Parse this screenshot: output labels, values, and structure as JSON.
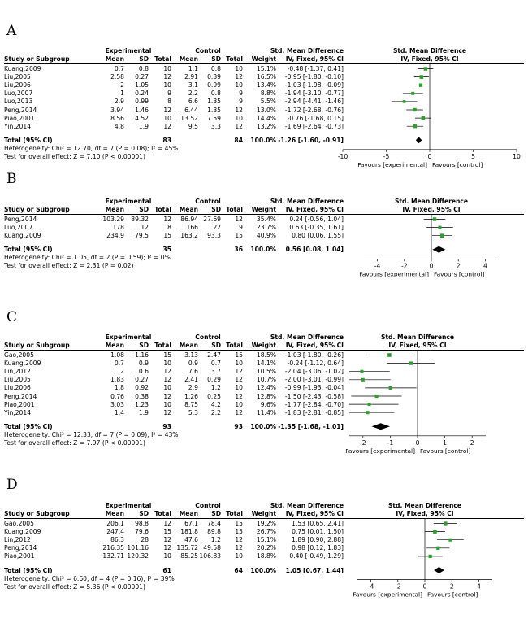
{
  "chart_data": [
    {
      "type": "forest",
      "panel": "A",
      "group_header": {
        "experimental": "Experimental",
        "control": "Control"
      },
      "columns": [
        "Study or Subgroup",
        "Mean",
        "SD",
        "Total",
        "Mean",
        "SD",
        "Total",
        "Weight",
        "IV, Fixed, 95% CI",
        "IV, Fixed, 95% CI"
      ],
      "effect_title": "Std. Mean Difference",
      "studies": [
        {
          "name": "Kuang,2009",
          "e_mean": "0.7",
          "e_sd": "0.8",
          "e_total": "10",
          "c_mean": "1.1",
          "c_sd": "0.8",
          "c_total": "10",
          "weight": "15.1%",
          "ci_text": "-0.48 [-1.37, 0.41]",
          "est": -0.48,
          "lo": -1.37,
          "hi": 0.41
        },
        {
          "name": "Liu,2005",
          "e_mean": "2.58",
          "e_sd": "0.27",
          "e_total": "12",
          "c_mean": "2.91",
          "c_sd": "0.39",
          "c_total": "12",
          "weight": "16.5%",
          "ci_text": "-0.95 [-1.80, -0.10]",
          "est": -0.95,
          "lo": -1.8,
          "hi": -0.1
        },
        {
          "name": "Liu,2006",
          "e_mean": "2",
          "e_sd": "1.05",
          "e_total": "10",
          "c_mean": "3.1",
          "c_sd": "0.99",
          "c_total": "10",
          "weight": "13.4%",
          "ci_text": "-1.03 [-1.98, -0.09]",
          "est": -1.03,
          "lo": -1.98,
          "hi": -0.09
        },
        {
          "name": "Luo,2007",
          "e_mean": "1",
          "e_sd": "0.24",
          "e_total": "9",
          "c_mean": "2.2",
          "c_sd": "0.8",
          "c_total": "9",
          "weight": "8.8%",
          "ci_text": "-1.94 [-3.10, -0.77]",
          "est": -1.94,
          "lo": -3.1,
          "hi": -0.77
        },
        {
          "name": "Luo,2013",
          "e_mean": "2.9",
          "e_sd": "0.99",
          "e_total": "8",
          "c_mean": "6.6",
          "c_sd": "1.35",
          "c_total": "9",
          "weight": "5.5%",
          "ci_text": "-2.94 [-4.41, -1.46]",
          "est": -2.94,
          "lo": -4.41,
          "hi": -1.46
        },
        {
          "name": "Peng,2014",
          "e_mean": "3.94",
          "e_sd": "1.46",
          "e_total": "12",
          "c_mean": "6.44",
          "c_sd": "1.35",
          "c_total": "12",
          "weight": "13.0%",
          "ci_text": "-1.72 [-2.68, -0.76]",
          "est": -1.72,
          "lo": -2.68,
          "hi": -0.76
        },
        {
          "name": "Piao,2001",
          "e_mean": "8.56",
          "e_sd": "4.52",
          "e_total": "10",
          "c_mean": "13.52",
          "c_sd": "7.59",
          "c_total": "10",
          "weight": "14.4%",
          "ci_text": "-0.76 [-1.68, 0.15]",
          "est": -0.76,
          "lo": -1.68,
          "hi": 0.15
        },
        {
          "name": "Yin,2014",
          "e_mean": "4.8",
          "e_sd": "1.9",
          "e_total": "12",
          "c_mean": "9.5",
          "c_sd": "3.3",
          "c_total": "12",
          "weight": "13.2%",
          "ci_text": "-1.69 [-2.64, -0.73]",
          "est": -1.69,
          "lo": -2.64,
          "hi": -0.73
        }
      ],
      "total": {
        "label": "Total (95% CI)",
        "e_total": "83",
        "c_total": "84",
        "weight": "100.0%",
        "ci_text": "-1.26 [-1.60, -0.91]",
        "est": -1.26,
        "lo": -1.6,
        "hi": -0.91
      },
      "heterogeneity": "Heterogeneity: Chi² = 12.70, df = 7 (P = 0.08); I² = 45%",
      "overall_test": "Test for overall effect: Z = 7.10 (P < 0.00001)",
      "xlim": [
        -10,
        10
      ],
      "ticks": [
        -10,
        -5,
        0,
        5,
        10
      ],
      "favours_left": "Favours [experimental]",
      "favours_right": "Favours [control]"
    },
    {
      "type": "forest",
      "panel": "B",
      "group_header": {
        "experimental": "Experimental",
        "control": "Control"
      },
      "columns": [
        "Study or Subgroup",
        "Mean",
        "SD",
        "Total",
        "Mean",
        "SD",
        "Total",
        "Weight",
        "IV, Fixed, 95% CI",
        "IV, Fixed, 95% CI"
      ],
      "effect_title": "Std. Mean Difference",
      "studies": [
        {
          "name": "Peng,2014",
          "e_mean": "103.29",
          "e_sd": "89.32",
          "e_total": "12",
          "c_mean": "86.94",
          "c_sd": "27.69",
          "c_total": "12",
          "weight": "35.4%",
          "ci_text": "0.24 [-0.56, 1.04]",
          "est": 0.24,
          "lo": -0.56,
          "hi": 1.04
        },
        {
          "name": "Luo,2007",
          "e_mean": "178",
          "e_sd": "12",
          "e_total": "8",
          "c_mean": "166",
          "c_sd": "22",
          "c_total": "9",
          "weight": "23.7%",
          "ci_text": "0.63 [-0.35, 1.61]",
          "est": 0.63,
          "lo": -0.35,
          "hi": 1.61
        },
        {
          "name": "Kuang,2009",
          "e_mean": "234.9",
          "e_sd": "79.5",
          "e_total": "15",
          "c_mean": "163.2",
          "c_sd": "93.3",
          "c_total": "15",
          "weight": "40.9%",
          "ci_text": "0.80 [0.06, 1.55]",
          "est": 0.8,
          "lo": 0.06,
          "hi": 1.55
        }
      ],
      "total": {
        "label": "Total (95% CI)",
        "e_total": "35",
        "c_total": "36",
        "weight": "100.0%",
        "ci_text": "0.56 [0.08, 1.04]",
        "est": 0.56,
        "lo": 0.08,
        "hi": 1.04
      },
      "heterogeneity": "Heterogeneity: Chi² = 1.05, df = 2 (P = 0.59); I² = 0%",
      "overall_test": "Test for overall effect: Z = 2.31 (P = 0.02)",
      "xlim": [
        -5,
        5
      ],
      "ticks": [
        -4,
        -2,
        0,
        2,
        4
      ],
      "favours_left": "Favours [experimental]",
      "favours_right": "Favours [control]"
    },
    {
      "type": "forest",
      "panel": "C",
      "group_header": {
        "experimental": "Experimental",
        "control": "Control"
      },
      "columns": [
        "Study or Subgroup",
        "Mean",
        "SD",
        "Total",
        "Mean",
        "SD",
        "Total",
        "Weight",
        "IV, Fixed, 95% CI",
        "IV, Fixed, 95% CI"
      ],
      "effect_title": "Std. Mean Difference",
      "studies": [
        {
          "name": "Gao,2005",
          "e_mean": "1.08",
          "e_sd": "1.16",
          "e_total": "15",
          "c_mean": "3.13",
          "c_sd": "2.47",
          "c_total": "15",
          "weight": "18.5%",
          "ci_text": "-1.03 [-1.80, -0.26]",
          "est": -1.03,
          "lo": -1.8,
          "hi": -0.26
        },
        {
          "name": "Kuang,2009",
          "e_mean": "0.7",
          "e_sd": "0.9",
          "e_total": "10",
          "c_mean": "0.9",
          "c_sd": "0.7",
          "c_total": "10",
          "weight": "14.1%",
          "ci_text": "-0.24 [-1.12, 0.64]",
          "est": -0.24,
          "lo": -1.12,
          "hi": 0.64
        },
        {
          "name": "Lin,2012",
          "e_mean": "2",
          "e_sd": "0.6",
          "e_total": "12",
          "c_mean": "7.6",
          "c_sd": "3.7",
          "c_total": "12",
          "weight": "10.5%",
          "ci_text": "-2.04 [-3.06, -1.02]",
          "est": -2.04,
          "lo": -3.06,
          "hi": -1.02
        },
        {
          "name": "Liu,2005",
          "e_mean": "1.83",
          "e_sd": "0.27",
          "e_total": "12",
          "c_mean": "2.41",
          "c_sd": "0.29",
          "c_total": "12",
          "weight": "10.7%",
          "ci_text": "-2.00 [-3.01, -0.99]",
          "est": -2.0,
          "lo": -3.01,
          "hi": -0.99
        },
        {
          "name": "Liu,2006",
          "e_mean": "1.8",
          "e_sd": "0.92",
          "e_total": "10",
          "c_mean": "2.9",
          "c_sd": "1.2",
          "c_total": "10",
          "weight": "12.4%",
          "ci_text": "-0.99 [-1.93, -0.04]",
          "est": -0.99,
          "lo": -1.93,
          "hi": -0.04
        },
        {
          "name": "Peng,2014",
          "e_mean": "0.76",
          "e_sd": "0.38",
          "e_total": "12",
          "c_mean": "1.26",
          "c_sd": "0.25",
          "c_total": "12",
          "weight": "12.8%",
          "ci_text": "-1.50 [-2.43, -0.58]",
          "est": -1.5,
          "lo": -2.43,
          "hi": -0.58
        },
        {
          "name": "Piao,2001",
          "e_mean": "3.03",
          "e_sd": "1.23",
          "e_total": "10",
          "c_mean": "8.75",
          "c_sd": "4.2",
          "c_total": "10",
          "weight": "9.6%",
          "ci_text": "-1.77 [-2.84, -0.70]",
          "est": -1.77,
          "lo": -2.84,
          "hi": -0.7
        },
        {
          "name": "Yin,2014",
          "e_mean": "1.4",
          "e_sd": "1.9",
          "e_total": "12",
          "c_mean": "5.3",
          "c_sd": "2.2",
          "c_total": "12",
          "weight": "11.4%",
          "ci_text": "-1.83 [-2.81, -0.85]",
          "est": -1.83,
          "lo": -2.81,
          "hi": -0.85
        }
      ],
      "total": {
        "label": "Total (95% CI)",
        "e_total": "93",
        "c_total": "93",
        "weight": "100.0%",
        "ci_text": "-1.35 [-1.68, -1.01]",
        "est": -1.35,
        "lo": -1.68,
        "hi": -1.01
      },
      "heterogeneity": "Heterogeneity: Chi² = 12.33, df = 7 (P = 0.09); I² = 43%",
      "overall_test": "Test for overall effect: Z = 7.97 (P < 0.00001)",
      "xlim": [
        -2.5,
        2.5
      ],
      "ticks": [
        -2,
        -1,
        0,
        1,
        2
      ],
      "favours_left": "Favours [experimental]",
      "favours_right": "Favours [control]"
    },
    {
      "type": "forest",
      "panel": "D",
      "group_header": {
        "experimental": "Experimental",
        "control": "Control"
      },
      "columns": [
        "Study or Subgroup",
        "Mean",
        "SD",
        "Total",
        "Mean",
        "SD",
        "Total",
        "Weight",
        "IV, Fixed, 95% CI",
        "IV, Fixed, 95% CI"
      ],
      "effect_title": "Std. Mean Difference",
      "studies": [
        {
          "name": "Gao,2005",
          "e_mean": "206.1",
          "e_sd": "98.8",
          "e_total": "12",
          "c_mean": "67.1",
          "c_sd": "78.4",
          "c_total": "15",
          "weight": "19.2%",
          "ci_text": "1.53 [0.65, 2.41]",
          "est": 1.53,
          "lo": 0.65,
          "hi": 2.41
        },
        {
          "name": "Kuang,2009",
          "e_mean": "247.4",
          "e_sd": "79.6",
          "e_total": "15",
          "c_mean": "181.8",
          "c_sd": "89.8",
          "c_total": "15",
          "weight": "26.7%",
          "ci_text": "0.75 [0.01, 1.50]",
          "est": 0.75,
          "lo": 0.01,
          "hi": 1.5
        },
        {
          "name": "Lin,2012",
          "e_mean": "86.3",
          "e_sd": "28",
          "e_total": "12",
          "c_mean": "47.6",
          "c_sd": "1.2",
          "c_total": "12",
          "weight": "15.1%",
          "ci_text": "1.89 [0.90, 2.88]",
          "est": 1.89,
          "lo": 0.9,
          "hi": 2.88
        },
        {
          "name": "Peng,2014",
          "e_mean": "216.35",
          "e_sd": "101.16",
          "e_total": "12",
          "c_mean": "135.72",
          "c_sd": "49.58",
          "c_total": "12",
          "weight": "20.2%",
          "ci_text": "0.98 [0.12, 1.83]",
          "est": 0.98,
          "lo": 0.12,
          "hi": 1.83
        },
        {
          "name": "Piao,2001",
          "e_mean": "132.71",
          "e_sd": "120.32",
          "e_total": "10",
          "c_mean": "85.25",
          "c_sd": "106.83",
          "c_total": "10",
          "weight": "18.8%",
          "ci_text": "0.40 [-0.49, 1.29]",
          "est": 0.4,
          "lo": -0.49,
          "hi": 1.29
        }
      ],
      "total": {
        "label": "Total (95% CI)",
        "e_total": "61",
        "c_total": "64",
        "weight": "100.0%",
        "ci_text": "1.05 [0.67, 1.44]",
        "est": 1.05,
        "lo": 0.67,
        "hi": 1.44
      },
      "heterogeneity": "Heterogeneity: Chi² = 6.60, df = 4 (P = 0.16); I² = 39%",
      "overall_test": "Test for overall effect: Z = 5.36 (P < 0.00001)",
      "xlim": [
        -5,
        5
      ],
      "ticks": [
        -4,
        -2,
        0,
        2,
        4
      ],
      "favours_left": "Favours [experimental]",
      "favours_right": "Favours [control]"
    }
  ],
  "colors": {
    "marker": "#2ca02c",
    "diamond": "#000000",
    "text": "#000000"
  }
}
